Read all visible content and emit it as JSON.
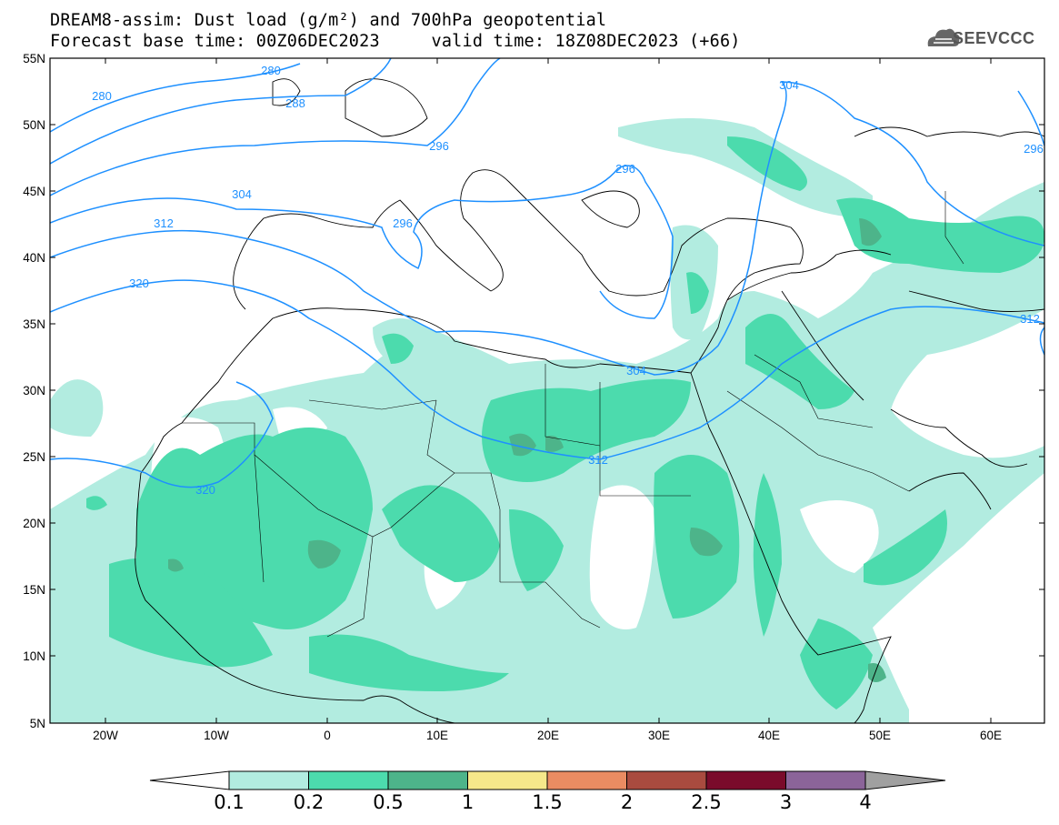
{
  "header": {
    "title_line1": "DREAM8-assim: Dust load (g/m²) and 700hPa geopotential",
    "title_line2": "Forecast base time: 00Z06DEC2023     valid time: 18Z08DEC2023 (+66)"
  },
  "logo": {
    "text": "SEEVCCC",
    "icon": "cloud-icon"
  },
  "map": {
    "lat_labels": [
      "55N",
      "50N",
      "45N",
      "40N",
      "35N",
      "30N",
      "25N",
      "20N",
      "15N",
      "10N",
      "5N"
    ],
    "lon_labels": [
      "20W",
      "10W",
      "0",
      "10E",
      "20E",
      "30E",
      "40E",
      "50E",
      "60E"
    ],
    "contour_labels": [
      "280",
      "280",
      "288",
      "296",
      "296",
      "296",
      "304",
      "304",
      "304",
      "312",
      "312",
      "312",
      "320",
      "320",
      "296"
    ],
    "colors": {
      "frame": "#000000",
      "contour": "#1e90ff",
      "coast": "#000000"
    }
  },
  "colorbar": {
    "labels": [
      "0.1",
      "0.2",
      "0.5",
      "1",
      "1.5",
      "2",
      "2.5",
      "3",
      "4"
    ],
    "colors": [
      "#ffffff",
      "#b2ece0",
      "#4cdbad",
      "#4db48a",
      "#f6e88a",
      "#ea8c62",
      "#a94b3f",
      "#7a0b2b",
      "#8b6499",
      "#a0a0a0"
    ]
  }
}
